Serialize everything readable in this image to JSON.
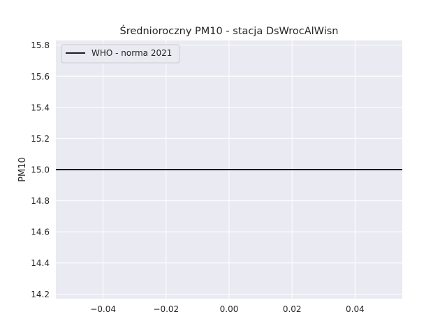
{
  "chart_data": {
    "type": "line",
    "title": "Średnioroczny PM10 - stacja DsWrocAlWisn",
    "xlabel": "",
    "ylabel": "PM10",
    "xlim": [
      -0.055,
      0.055
    ],
    "ylim": [
      14.17,
      15.83
    ],
    "x_ticks": [
      -0.04,
      -0.02,
      0.0,
      0.02,
      0.04
    ],
    "x_tick_labels": [
      "−0.04",
      "−0.02",
      "0.00",
      "0.02",
      "0.04"
    ],
    "y_ticks": [
      14.2,
      14.4,
      14.6,
      14.8,
      15.0,
      15.2,
      15.4,
      15.6,
      15.8
    ],
    "y_tick_labels": [
      "14.2",
      "14.4",
      "14.6",
      "14.8",
      "15.0",
      "15.2",
      "15.4",
      "15.6",
      "15.8"
    ],
    "grid": true,
    "legend_position": "top-left",
    "series": [
      {
        "name": "WHO - norma 2021",
        "kind": "hline",
        "y": 15.0,
        "color": "#000000"
      }
    ],
    "background": "#eaeaf2",
    "grid_color": "#ffffff"
  }
}
